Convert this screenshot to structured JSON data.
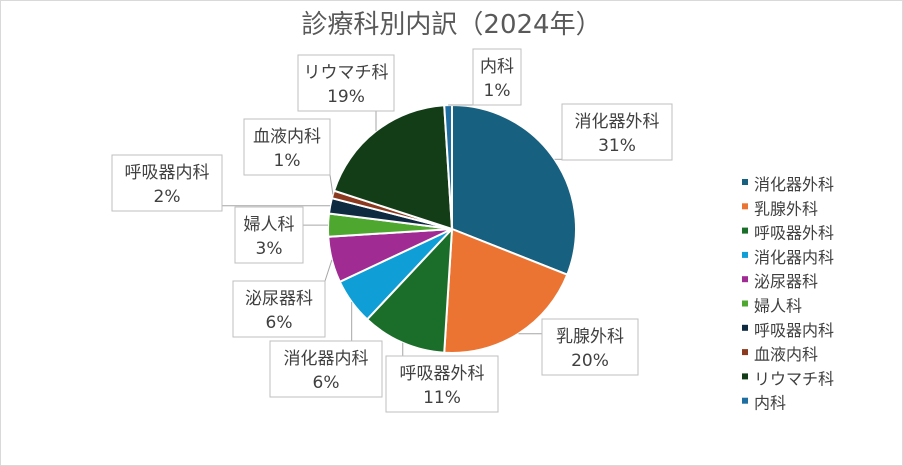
{
  "chart_data": {
    "type": "pie",
    "title": "診療科別内訳（2024年）",
    "legend_position": "right",
    "slices": [
      {
        "name": "消化器外科",
        "value": 31,
        "label": "31%",
        "color": "#17607f"
      },
      {
        "name": "乳腺外科",
        "value": 20,
        "label": "20%",
        "color": "#ec7432"
      },
      {
        "name": "呼吸器外科",
        "value": 11,
        "label": "11%",
        "color": "#1b6e2a"
      },
      {
        "name": "消化器内科",
        "value": 6,
        "label": "6%",
        "color": "#0f9ed5"
      },
      {
        "name": "泌尿器科",
        "value": 6,
        "label": "6%",
        "color": "#a02b93"
      },
      {
        "name": "婦人科",
        "value": 3,
        "label": "3%",
        "color": "#4ea72e"
      },
      {
        "name": "呼吸器内科",
        "value": 2,
        "label": "2%",
        "color": "#0e2a41"
      },
      {
        "name": "血液内科",
        "value": 1,
        "label": "1%",
        "color": "#8b3a1f"
      },
      {
        "name": "リウマチ科",
        "value": 19,
        "label": "19%",
        "color": "#123d17"
      },
      {
        "name": "内科",
        "value": 1,
        "label": "1%",
        "color": "#1f6ea1"
      }
    ]
  }
}
